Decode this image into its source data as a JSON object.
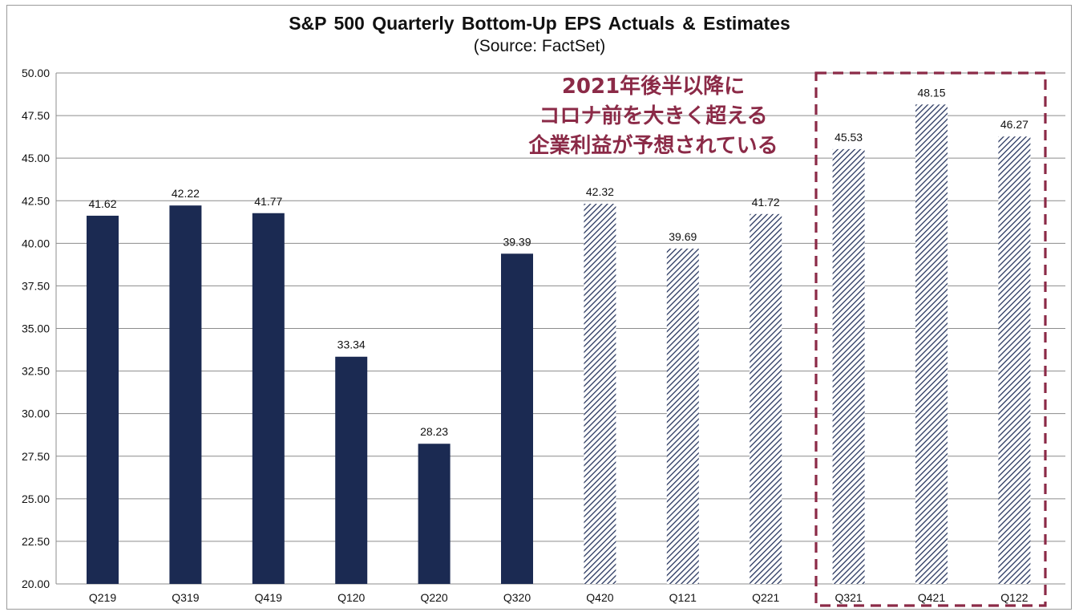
{
  "chart_data": {
    "type": "bar",
    "title": "S&P 500 Quarterly Bottom-Up EPS Actuals & Estimates",
    "subtitle": "(Source: FactSet)",
    "categories": [
      "Q219",
      "Q319",
      "Q419",
      "Q120",
      "Q220",
      "Q320",
      "Q420",
      "Q121",
      "Q221",
      "Q321",
      "Q421",
      "Q122"
    ],
    "values": [
      41.62,
      42.22,
      41.77,
      33.34,
      28.23,
      39.39,
      42.32,
      39.69,
      41.72,
      45.53,
      48.15,
      46.27
    ],
    "value_labels": [
      "41.62",
      "42.22",
      "41.77",
      "33.34",
      "28.23",
      "39.39",
      "42.32",
      "39.69",
      "41.72",
      "45.53",
      "48.15",
      "46.27"
    ],
    "bar_style": [
      "actual",
      "actual",
      "actual",
      "actual",
      "actual",
      "actual",
      "estimate",
      "estimate",
      "estimate",
      "estimate",
      "estimate",
      "estimate"
    ],
    "ylim": [
      20,
      50
    ],
    "yticks": [
      "20.00",
      "22.50",
      "25.00",
      "27.50",
      "30.00",
      "32.50",
      "35.00",
      "37.50",
      "40.00",
      "42.50",
      "45.00",
      "47.50",
      "50.00"
    ],
    "grid": true,
    "highlight_categories": [
      "Q321",
      "Q421",
      "Q122"
    ],
    "annotation_lines": [
      "2021年後半以降に",
      "コロナ前を大きく超える",
      "企業利益が予想されている"
    ]
  },
  "colors": {
    "actual_bar": "#1b2a52",
    "estimate_hatch": "#27355e",
    "highlight_box": "#8b2a47",
    "annotation_text": "#8b2a47",
    "grid": "#8c8c8c"
  }
}
